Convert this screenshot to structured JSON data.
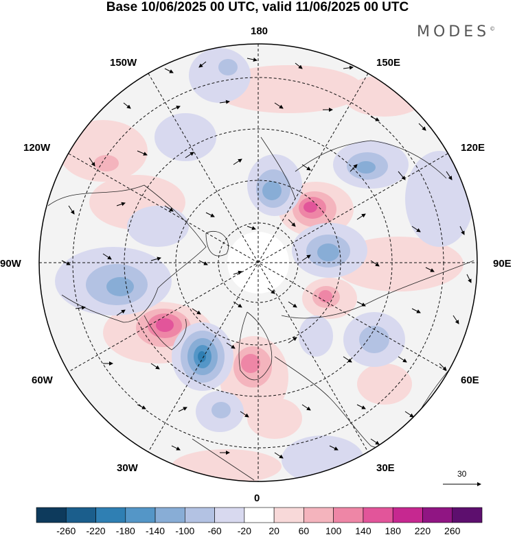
{
  "title": "Base 10/06/2025 00 UTC, valid 11/06/2025 00 UTC",
  "brand": {
    "name": "MODES",
    "mark": "©"
  },
  "map": {
    "projection": "north-polar-stereographic",
    "center": "North Pole",
    "longitude_labels": {
      "top": "180",
      "bottom": "0",
      "left": "90W",
      "right": "90E",
      "upper_left_1": "150W",
      "upper_left_2": "120W",
      "upper_right_1": "150E",
      "upper_right_2": "120E",
      "lower_left_1": "60W",
      "lower_left_2": "30W",
      "lower_right_1": "60E",
      "lower_right_2": "30E"
    }
  },
  "reference_vector": {
    "value": "30"
  },
  "colorbar": {
    "ticks": [
      "-260",
      "-220",
      "-180",
      "-140",
      "-100",
      "-60",
      "-20",
      "20",
      "60",
      "100",
      "140",
      "180",
      "220",
      "260"
    ],
    "colors": [
      "#0d3a5c",
      "#1b5e8c",
      "#2f7fb3",
      "#5496c7",
      "#88add6",
      "#b3c2e3",
      "#d8d9ef",
      "#ffffff",
      "#f8d9d9",
      "#f4b4bd",
      "#ee86a6",
      "#e2559a",
      "#c62890",
      "#901583",
      "#5d0f6e"
    ]
  }
}
